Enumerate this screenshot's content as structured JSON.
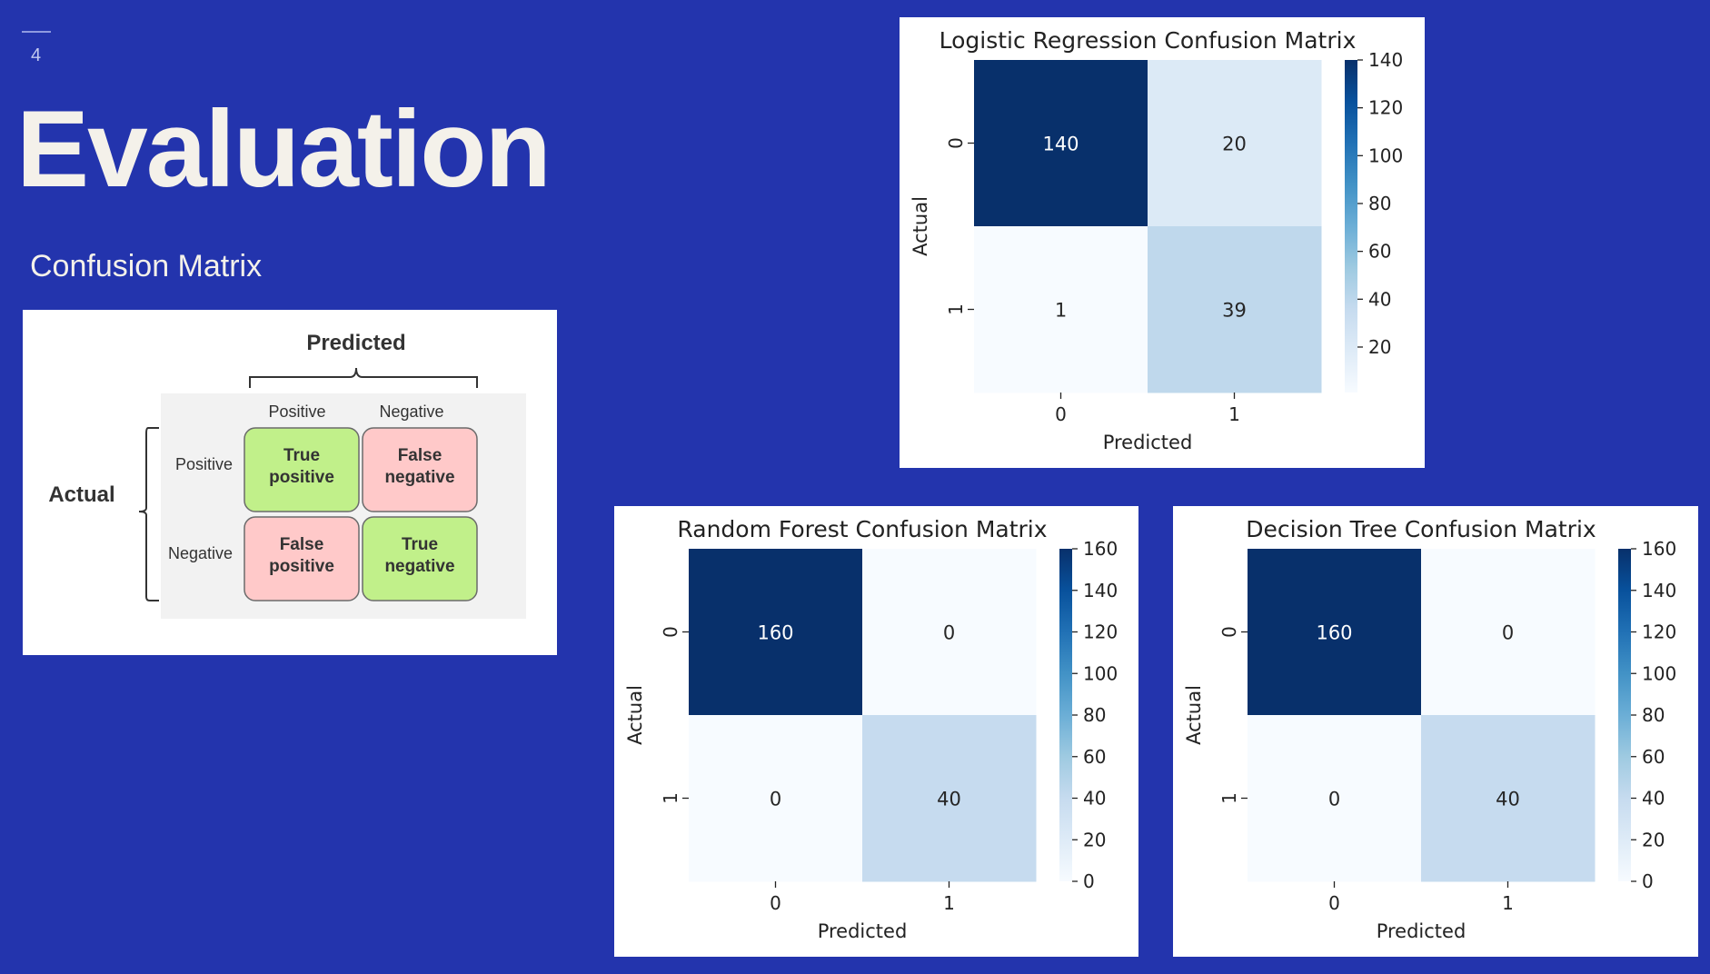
{
  "slide": {
    "number": "4",
    "title": "Evaluation",
    "subtitle": "Confusion Matrix"
  },
  "diagram": {
    "predicted_label": "Predicted",
    "actual_label": "Actual",
    "col_headers": [
      "Positive",
      "Negative"
    ],
    "row_headers": [
      "Positive",
      "Negative"
    ],
    "cells": [
      [
        "True\npositive",
        "False\nnegative"
      ],
      [
        "False\npositive",
        "True\nnegative"
      ]
    ],
    "colors": {
      "correct": "#c1f08a",
      "wrong": "#ffc9c9",
      "panel": "#f2f2f2"
    }
  },
  "colormap": "Blues",
  "chart_data": [
    {
      "type": "heatmap",
      "title": "Logistic Regression Confusion Matrix",
      "xlabel": "Predicted",
      "ylabel": "Actual",
      "x_categories": [
        "0",
        "1"
      ],
      "y_categories": [
        "0",
        "1"
      ],
      "values": [
        [
          140,
          20
        ],
        [
          1,
          39
        ]
      ],
      "colorbar": {
        "min": 1,
        "max": 140,
        "ticks": [
          20,
          40,
          60,
          80,
          100,
          120,
          140
        ]
      }
    },
    {
      "type": "heatmap",
      "title": "Random Forest Confusion Matrix",
      "xlabel": "Predicted",
      "ylabel": "Actual",
      "x_categories": [
        "0",
        "1"
      ],
      "y_categories": [
        "0",
        "1"
      ],
      "values": [
        [
          160,
          0
        ],
        [
          0,
          40
        ]
      ],
      "colorbar": {
        "min": 0,
        "max": 160,
        "ticks": [
          0,
          20,
          40,
          60,
          80,
          100,
          120,
          140,
          160
        ]
      }
    },
    {
      "type": "heatmap",
      "title": "Decision Tree Confusion Matrix",
      "xlabel": "Predicted",
      "ylabel": "Actual",
      "x_categories": [
        "0",
        "1"
      ],
      "y_categories": [
        "0",
        "1"
      ],
      "values": [
        [
          160,
          0
        ],
        [
          0,
          40
        ]
      ],
      "colorbar": {
        "min": 0,
        "max": 160,
        "ticks": [
          0,
          20,
          40,
          60,
          80,
          100,
          120,
          140,
          160
        ]
      }
    }
  ]
}
